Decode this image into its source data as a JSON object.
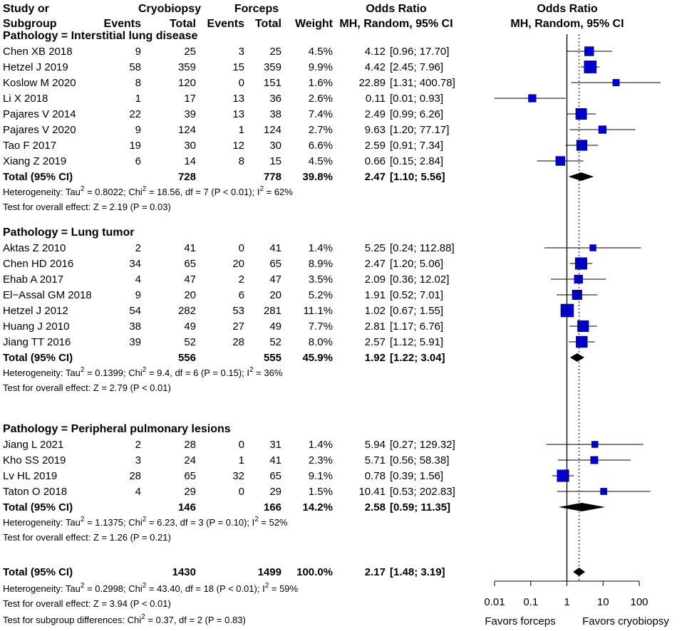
{
  "chart_data": {
    "type": "forest",
    "headers": {
      "study_line1": "Study or",
      "study_line2": "Subgroup",
      "cryo_group": "Cryobiopsy",
      "forceps_group": "Forceps",
      "events": "Events",
      "total": "Total",
      "weight": "Weight",
      "or_line1": "Odds Ratio",
      "or_line2": "MH, Random, 95% CI",
      "plot_line1": "Odds Ratio",
      "plot_line2": "MH, Random, 95% CI"
    },
    "subgroups": [
      {
        "title": "Pathology = Interstitial lung disease",
        "studies": [
          {
            "name": "Chen XB 2018",
            "e1": "9",
            "n1": "25",
            "e2": "3",
            "n2": "25",
            "weight": "4.5%",
            "or": "4.12",
            "ci": "[0.96; 17.70]",
            "or_val": 4.12,
            "lo": 0.96,
            "hi": 17.7,
            "w": 4.5
          },
          {
            "name": "Hetzel J 2019",
            "e1": "58",
            "n1": "359",
            "e2": "15",
            "n2": "359",
            "weight": "9.9%",
            "or": "4.42",
            "ci": "[2.45; 7.96]",
            "or_val": 4.42,
            "lo": 2.45,
            "hi": 7.96,
            "w": 9.9
          },
          {
            "name": "Koslow M 2020",
            "e1": "8",
            "n1": "120",
            "e2": "0",
            "n2": "151",
            "weight": "1.6%",
            "or": "22.89",
            "ci": "[1.31; 400.78]",
            "or_val": 22.89,
            "lo": 1.31,
            "hi": 400.78,
            "w": 1.6
          },
          {
            "name": "Li X 2018",
            "e1": "1",
            "n1": "17",
            "e2": "13",
            "n2": "36",
            "weight": "2.6%",
            "or": "0.11",
            "ci": "[0.01; 0.93]",
            "or_val": 0.11,
            "lo": 0.01,
            "hi": 0.93,
            "w": 2.6
          },
          {
            "name": "Pajares V 2014",
            "e1": "22",
            "n1": "39",
            "e2": "13",
            "n2": "38",
            "weight": "7.4%",
            "or": "2.49",
            "ci": "[0.99; 6.26]",
            "or_val": 2.49,
            "lo": 0.99,
            "hi": 6.26,
            "w": 7.4
          },
          {
            "name": "Pajares V 2020",
            "e1": "9",
            "n1": "124",
            "e2": "1",
            "n2": "124",
            "weight": "2.7%",
            "or": "9.63",
            "ci": "[1.20; 77.17]",
            "or_val": 9.63,
            "lo": 1.2,
            "hi": 77.17,
            "w": 2.7
          },
          {
            "name": "Tao F 2017",
            "e1": "19",
            "n1": "30",
            "e2": "12",
            "n2": "30",
            "weight": "6.6%",
            "or": "2.59",
            "ci": "[0.91; 7.34]",
            "or_val": 2.59,
            "lo": 0.91,
            "hi": 7.34,
            "w": 6.6
          },
          {
            "name": "Xiang Z 2019",
            "e1": "6",
            "n1": "14",
            "e2": "8",
            "n2": "15",
            "weight": "4.5%",
            "or": "0.66",
            "ci": "[0.15; 2.84]",
            "or_val": 0.66,
            "lo": 0.15,
            "hi": 2.84,
            "w": 4.5
          }
        ],
        "total": {
          "label": "Total (95% CI)",
          "n1": "728",
          "n2": "778",
          "weight": "39.8%",
          "or": "2.47",
          "ci": "[1.10; 5.56]",
          "or_val": 2.47,
          "lo": 1.1,
          "hi": 5.56
        },
        "heterogeneity": {
          "prefix": "Heterogeneity: Tau",
          "tau2": "= 0.8022; Chi",
          "chi2": "= 18.56, df = 7 (P < 0.01); I",
          "i2": "= 62%"
        },
        "overall_effect": "Test for overall effect: Z = 2.19 (P = 0.03)"
      },
      {
        "title": "Pathology = Lung tumor",
        "studies": [
          {
            "name": "Aktas Z 2010",
            "e1": "2",
            "n1": "41",
            "e2": "0",
            "n2": "41",
            "weight": "1.4%",
            "or": "5.25",
            "ci": "[0.24; 112.88]",
            "or_val": 5.25,
            "lo": 0.24,
            "hi": 112.88,
            "w": 1.4
          },
          {
            "name": "Chen HD 2016",
            "e1": "34",
            "n1": "65",
            "e2": "20",
            "n2": "65",
            "weight": "8.9%",
            "or": "2.47",
            "ci": "[1.20; 5.06]",
            "or_val": 2.47,
            "lo": 1.2,
            "hi": 5.06,
            "w": 8.9
          },
          {
            "name": "Ehab A 2017",
            "e1": "4",
            "n1": "47",
            "e2": "2",
            "n2": "47",
            "weight": "3.5%",
            "or": "2.09",
            "ci": "[0.36; 12.02]",
            "or_val": 2.09,
            "lo": 0.36,
            "hi": 12.02,
            "w": 3.5
          },
          {
            "name": "El−Assal GM 2018",
            "e1": "9",
            "n1": "20",
            "e2": "6",
            "n2": "20",
            "weight": "5.2%",
            "or": "1.91",
            "ci": "[0.52; 7.01]",
            "or_val": 1.91,
            "lo": 0.52,
            "hi": 7.01,
            "w": 5.2
          },
          {
            "name": "Hetzel J 2012",
            "e1": "54",
            "n1": "282",
            "e2": "53",
            "n2": "281",
            "weight": "11.1%",
            "or": "1.02",
            "ci": "[0.67; 1.55]",
            "or_val": 1.02,
            "lo": 0.67,
            "hi": 1.55,
            "w": 11.1
          },
          {
            "name": "Huang J 2010",
            "e1": "38",
            "n1": "49",
            "e2": "27",
            "n2": "49",
            "weight": "7.7%",
            "or": "2.81",
            "ci": "[1.17; 6.76]",
            "or_val": 2.81,
            "lo": 1.17,
            "hi": 6.76,
            "w": 7.7
          },
          {
            "name": "Jiang TT 2016",
            "e1": "39",
            "n1": "52",
            "e2": "28",
            "n2": "52",
            "weight": "8.0%",
            "or": "2.57",
            "ci": "[1.12; 5.91]",
            "or_val": 2.57,
            "lo": 1.12,
            "hi": 5.91,
            "w": 8.0
          }
        ],
        "total": {
          "label": "Total (95% CI)",
          "n1": "556",
          "n2": "555",
          "weight": "45.9%",
          "or": "1.92",
          "ci": "[1.22; 3.04]",
          "or_val": 1.92,
          "lo": 1.22,
          "hi": 3.04
        },
        "heterogeneity": {
          "prefix": "Heterogeneity: Tau",
          "tau2": "= 0.1399; Chi",
          "chi2": "= 9.4, df = 6 (P = 0.15); I",
          "i2": "= 36%"
        },
        "overall_effect": "Test for overall effect: Z = 2.79 (P < 0.01)"
      },
      {
        "title": "Pathology = Peripheral pulmonary lesions",
        "studies": [
          {
            "name": "Jiang L 2021",
            "e1": "2",
            "n1": "28",
            "e2": "0",
            "n2": "31",
            "weight": "1.4%",
            "or": "5.94",
            "ci": "[0.27; 129.32]",
            "or_val": 5.94,
            "lo": 0.27,
            "hi": 129.32,
            "w": 1.4
          },
          {
            "name": "Kho SS 2019",
            "e1": "3",
            "n1": "24",
            "e2": "1",
            "n2": "41",
            "weight": "2.3%",
            "or": "5.71",
            "ci": "[0.56; 58.38]",
            "or_val": 5.71,
            "lo": 0.56,
            "hi": 58.38,
            "w": 2.3
          },
          {
            "name": "Lv HL 2019",
            "e1": "28",
            "n1": "65",
            "e2": "32",
            "n2": "65",
            "weight": "9.1%",
            "or": "0.78",
            "ci": "[0.39; 1.56]",
            "or_val": 0.78,
            "lo": 0.39,
            "hi": 1.56,
            "w": 9.1
          },
          {
            "name": "Taton O 2018",
            "e1": "4",
            "n1": "29",
            "e2": "0",
            "n2": "29",
            "weight": "1.5%",
            "or": "10.41",
            "ci": "[0.53; 202.83]",
            "or_val": 10.41,
            "lo": 0.53,
            "hi": 202.83,
            "w": 1.5
          }
        ],
        "total": {
          "label": "Total (95% CI)",
          "n1": "146",
          "n2": "166",
          "weight": "14.2%",
          "or": "2.58",
          "ci": "[0.59; 11.35]",
          "or_val": 2.58,
          "lo": 0.59,
          "hi": 11.35
        },
        "heterogeneity": {
          "prefix": "Heterogeneity: Tau",
          "tau2": "= 1.1375; Chi",
          "chi2": "= 6.23, df = 3 (P = 0.10); I",
          "i2": "= 52%"
        },
        "overall_effect": "Test for overall effect: Z = 1.26 (P = 0.21)"
      }
    ],
    "overall": {
      "label": "Total (95% CI)",
      "n1": "1430",
      "n2": "1499",
      "weight": "100.0%",
      "or": "2.17",
      "ci": "[1.48; 3.19]",
      "or_val": 2.17,
      "lo": 1.48,
      "hi": 3.19,
      "heterogeneity": {
        "prefix": "Heterogeneity: Tau",
        "tau2": "= 0.2998; Chi",
        "chi2": "= 43.40, df = 18 (P < 0.01); I",
        "i2": "= 59%"
      },
      "overall_effect": "Test for overall effect: Z = 3.94 (P < 0.01)",
      "subgroup_diff": {
        "prefix": "Test for subgroup differences: Chi",
        "rest": "= 0.37, df = 2 (P = 0.83)"
      }
    },
    "superscript": "2",
    "axis": {
      "scale": "log",
      "ticks": [
        0.01,
        0.1,
        1,
        10,
        100
      ],
      "tick_labels": [
        "0.01",
        "0.1",
        "1",
        "10",
        "100"
      ],
      "xlim": [
        0.01,
        100
      ],
      "reference_line": 1,
      "label_left": "Favors forceps",
      "label_right": "Favors cryobiopsy"
    },
    "colors": {
      "marker": "#0000cc",
      "diamond": "#000000",
      "line": "#000000"
    }
  }
}
